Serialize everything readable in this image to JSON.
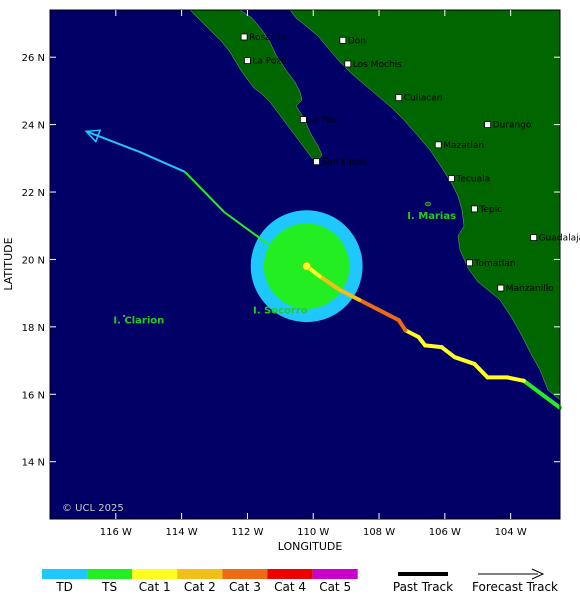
{
  "map": {
    "lon_range": [
      -118,
      -102.5
    ],
    "lat_range": [
      12.3,
      27.4
    ],
    "lon_ticks": [
      {
        "value": -116,
        "label": "116 W"
      },
      {
        "value": -114,
        "label": "114 W"
      },
      {
        "value": -112,
        "label": "112 W"
      },
      {
        "value": -110,
        "label": "110 W"
      },
      {
        "value": -108,
        "label": "108 W"
      },
      {
        "value": -106,
        "label": "106 W"
      },
      {
        "value": -104,
        "label": "104 W"
      }
    ],
    "lat_ticks": [
      {
        "value": 26,
        "label": "26 N"
      },
      {
        "value": 24,
        "label": "24 N"
      },
      {
        "value": 22,
        "label": "22 N"
      },
      {
        "value": 20,
        "label": "20 N"
      },
      {
        "value": 18,
        "label": "18 N"
      },
      {
        "value": 16,
        "label": "16 N"
      },
      {
        "value": 14,
        "label": "14 N"
      }
    ],
    "xlabel": "LONGITUDE",
    "ylabel": "LATITUDE",
    "credit": "© UCL 2025",
    "colors": {
      "ocean": "#000066",
      "land": "#006600",
      "td": "#1ec8ff",
      "ts": "#22ee22",
      "cat1": "#ffff22",
      "cat2": "#f0c018",
      "cat3": "#ee6a14",
      "cat4": "#ee0000",
      "cat5": "#cc00cc"
    }
  },
  "cities": [
    {
      "name": "Rosarito",
      "lon": -112.1,
      "lat": 26.6
    },
    {
      "name": "La Poza",
      "lon": -112.0,
      "lat": 25.9
    },
    {
      "name": "Don",
      "lon": -109.1,
      "lat": 26.5
    },
    {
      "name": "Los Mochis",
      "lon": -108.95,
      "lat": 25.8
    },
    {
      "name": "Culiacan",
      "lon": -107.4,
      "lat": 24.8
    },
    {
      "name": "La Paz",
      "lon": -110.3,
      "lat": 24.15
    },
    {
      "name": "Durango",
      "lon": -104.7,
      "lat": 24.0
    },
    {
      "name": "Mazatlan",
      "lon": -106.2,
      "lat": 23.4
    },
    {
      "name": "San Lucas",
      "lon": -109.9,
      "lat": 22.9
    },
    {
      "name": "Tecuala",
      "lon": -105.8,
      "lat": 22.4
    },
    {
      "name": "Tepic",
      "lon": -105.1,
      "lat": 21.5
    },
    {
      "name": "Guadalajara",
      "lon": -103.3,
      "lat": 20.65
    },
    {
      "name": "Tomatlan",
      "lon": -105.25,
      "lat": 19.9
    },
    {
      "name": "Manzanillo",
      "lon": -104.3,
      "lat": 19.15
    }
  ],
  "islands": [
    {
      "name": "I. Marias",
      "lon": -106.4,
      "lat": 21.2
    },
    {
      "name": "I. Socorro",
      "lon": -111.0,
      "lat": 18.4
    },
    {
      "name": "I. Clarion",
      "lon": -115.3,
      "lat": 18.1
    }
  ],
  "storm": {
    "center": {
      "lon": -110.2,
      "lat": 19.8
    },
    "ts_radius_deg": 1.3,
    "td_radius_deg": 1.7,
    "track": [
      {
        "lon": -102.5,
        "lat": 15.6,
        "cat": "ts"
      },
      {
        "lon": -103.6,
        "lat": 16.4,
        "cat": "ts"
      },
      {
        "lon": -104.1,
        "lat": 16.5,
        "cat": "cat1"
      },
      {
        "lon": -104.7,
        "lat": 16.5,
        "cat": "cat1"
      },
      {
        "lon": -105.1,
        "lat": 16.9,
        "cat": "cat1"
      },
      {
        "lon": -105.7,
        "lat": 17.1,
        "cat": "cat1"
      },
      {
        "lon": -106.1,
        "lat": 17.4,
        "cat": "cat1"
      },
      {
        "lon": -106.6,
        "lat": 17.45,
        "cat": "cat1"
      },
      {
        "lon": -106.8,
        "lat": 17.7,
        "cat": "cat1"
      },
      {
        "lon": -107.2,
        "lat": 17.9,
        "cat": "cat1"
      },
      {
        "lon": -107.4,
        "lat": 18.2,
        "cat": "cat3"
      },
      {
        "lon": -108.0,
        "lat": 18.5,
        "cat": "cat3"
      },
      {
        "lon": -108.6,
        "lat": 18.8,
        "cat": "cat3"
      },
      {
        "lon": -109.2,
        "lat": 19.1,
        "cat": "cat2"
      },
      {
        "lon": -109.8,
        "lat": 19.5,
        "cat": "cat2"
      },
      {
        "lon": -110.2,
        "lat": 19.8,
        "cat": "cat1"
      }
    ],
    "forecast": [
      {
        "lon": -110.2,
        "lat": 19.8,
        "cat": "cat1"
      },
      {
        "lon": -111.3,
        "lat": 20.4,
        "cat": "ts"
      },
      {
        "lon": -112.7,
        "lat": 21.4,
        "cat": "ts"
      },
      {
        "lon": -113.9,
        "lat": 22.6,
        "cat": "ts"
      },
      {
        "lon": -115.3,
        "lat": 23.2,
        "cat": "td"
      },
      {
        "lon": -116.9,
        "lat": 23.8,
        "cat": "td"
      }
    ]
  },
  "legend": {
    "categories": [
      {
        "label": "TD",
        "color": "#1ec8ff"
      },
      {
        "label": "TS",
        "color": "#22ee22"
      },
      {
        "label": "Cat 1",
        "color": "#ffff22"
      },
      {
        "label": "Cat 2",
        "color": "#f0c018"
      },
      {
        "label": "Cat 3",
        "color": "#ee6a14"
      },
      {
        "label": "Cat 4",
        "color": "#ee0000"
      },
      {
        "label": "Cat 5",
        "color": "#cc00cc"
      }
    ],
    "past_track": "Past Track",
    "forecast_track": "Forecast Track"
  }
}
